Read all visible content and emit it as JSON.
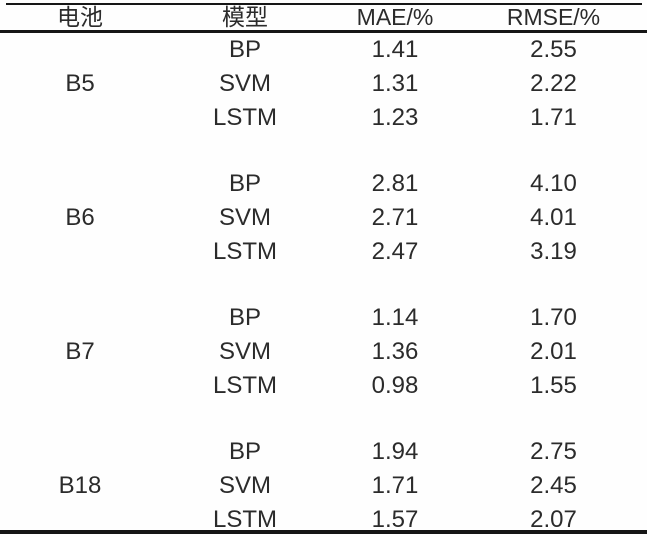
{
  "page": {
    "background": "#fefefe",
    "text_color": "#2b2b2b",
    "rule_color": "#161616"
  },
  "table": {
    "headers": {
      "battery": "电池",
      "model": "模型",
      "mae": "MAE/%",
      "rmse": "RMSE/%"
    },
    "groups": [
      {
        "battery": "B5",
        "rows": [
          [
            "BP",
            "1.41",
            "2.55"
          ],
          [
            "SVM",
            "1.31",
            "2.22"
          ],
          [
            "LSTM",
            "1.23",
            "1.71"
          ]
        ]
      },
      {
        "battery": "B6",
        "rows": [
          [
            "BP",
            "2.81",
            "4.10"
          ],
          [
            "SVM",
            "2.71",
            "4.01"
          ],
          [
            "LSTM",
            "2.47",
            "3.19"
          ]
        ]
      },
      {
        "battery": "B7",
        "rows": [
          [
            "BP",
            "1.14",
            "1.70"
          ],
          [
            "SVM",
            "1.36",
            "2.01"
          ],
          [
            "LSTM",
            "0.98",
            "1.55"
          ]
        ]
      },
      {
        "battery": "B18",
        "rows": [
          [
            "BP",
            "1.94",
            "2.75"
          ],
          [
            "SVM",
            "1.71",
            "2.45"
          ],
          [
            "LSTM",
            "1.57",
            "2.07"
          ]
        ]
      }
    ]
  },
  "chart_data": {
    "type": "table",
    "columns": [
      "电池",
      "模型",
      "MAE/%",
      "RMSE/%"
    ],
    "rows": [
      [
        "B5",
        "BP",
        1.41,
        2.55
      ],
      [
        "B5",
        "SVM",
        1.31,
        2.22
      ],
      [
        "B5",
        "LSTM",
        1.23,
        1.71
      ],
      [
        "B6",
        "BP",
        2.81,
        4.1
      ],
      [
        "B6",
        "SVM",
        2.71,
        4.01
      ],
      [
        "B6",
        "LSTM",
        2.47,
        3.19
      ],
      [
        "B7",
        "BP",
        1.14,
        1.7
      ],
      [
        "B7",
        "SVM",
        1.36,
        2.01
      ],
      [
        "B7",
        "LSTM",
        0.98,
        1.55
      ],
      [
        "B18",
        "BP",
        1.94,
        2.75
      ],
      [
        "B18",
        "SVM",
        1.71,
        2.45
      ],
      [
        "B18",
        "LSTM",
        1.57,
        2.07
      ]
    ]
  }
}
